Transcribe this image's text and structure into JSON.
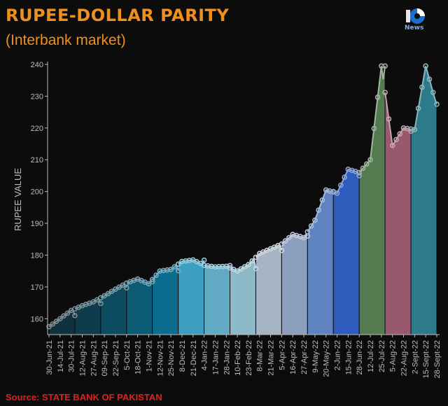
{
  "title": "RUPEE-DOLLAR PARITY",
  "subtitle": "(Interbank market)",
  "logo_text": "News",
  "source": "Source: STATE BANK OF PAKISTAN",
  "chart_data": {
    "type": "area",
    "ylabel": "RUPEE VALUE",
    "xlabel": "",
    "ylim": [
      155,
      240
    ],
    "yticks": [
      160,
      170,
      180,
      190,
      200,
      210,
      220,
      230,
      240
    ],
    "grid": false,
    "categories": [
      "30-Jun-21",
      "14-Jul-21",
      "30-Jul-21",
      "12-Aug-21",
      "27-Aug-21",
      "09-Sep-21",
      "22-Sep-21",
      "5-Oct-21",
      "18-Oct-21",
      "1-Nov-21",
      "12-Nov-21",
      "25-Nov-21",
      "8-Dec-21",
      "21-Dec-21",
      "4-Jan-22",
      "17-Jan-22",
      "28-Jan-22",
      "10-Feb-22",
      "23-Feb-22",
      "8-Mar-22",
      "21-Mar-22",
      "5-Apr-22",
      "16-Apr-22",
      "27-Apr-22",
      "9-May-22",
      "20-May-22",
      "2-Jun-22",
      "15-Jun-22",
      "28-Jun-22",
      "12-Jul-22",
      "25-Jul-22",
      "5-Aug-22",
      "22-Aug-22",
      "2-Sept-22",
      "15-Sept-22",
      "28-Sept-22"
    ],
    "values": [
      157.5,
      160,
      162.6,
      164.1,
      165.3,
      167.2,
      169.3,
      171.2,
      172.5,
      171,
      175,
      175.5,
      178,
      178.5,
      176.8,
      176.3,
      176.5,
      175,
      177,
      180.5,
      182,
      183.5,
      186.5,
      185.5,
      191,
      200.5,
      199.5,
      207,
      206,
      210,
      239.5,
      214.5,
      220,
      219.5,
      239.5,
      227
    ],
    "monthly_segments": [
      {
        "label": "Jul-21",
        "end": 161.0,
        "color": "#10323f"
      },
      {
        "label": "Aug-21",
        "end": 164.8,
        "color": "#0f3c4c"
      },
      {
        "label": "Sep-21",
        "end": 169.7,
        "color": "#0d4c60"
      },
      {
        "label": "Oct-21",
        "end": 171.6,
        "color": "#0c5a74"
      },
      {
        "label": "Nov-21",
        "end": 175.1,
        "color": "#0a6d8e"
      },
      {
        "label": "Dec-21",
        "end": 178.4,
        "color": "#3c9ec1"
      },
      {
        "label": "Jan-22",
        "end": 176.7,
        "color": "#62aac4"
      },
      {
        "label": "Feb-22",
        "end": 175.8,
        "color": "#8dbac8"
      },
      {
        "label": "Mar-22",
        "end": 181.5,
        "color": "#a6b4c4"
      },
      {
        "label": "Apr-22",
        "end": 186.0,
        "color": "#8c9fbf"
      },
      {
        "label": "May-22",
        "end": 200.0,
        "color": "#5f83c0"
      },
      {
        "label": "Jun-22",
        "end": 205.0,
        "color": "#2d5cbc"
      },
      {
        "label": "Jul-22",
        "end": 239.5,
        "color": "#547a50"
      },
      {
        "label": "Aug-22",
        "end": 219.0,
        "color": "#98596d"
      },
      {
        "label": "Sep-22",
        "end": 227.5,
        "color": "#2d7a8a"
      }
    ],
    "colors": {
      "title": "#f0901c",
      "source": "#e02020",
      "background": "#0d0c0d",
      "axis": "#bdbdbd"
    }
  }
}
